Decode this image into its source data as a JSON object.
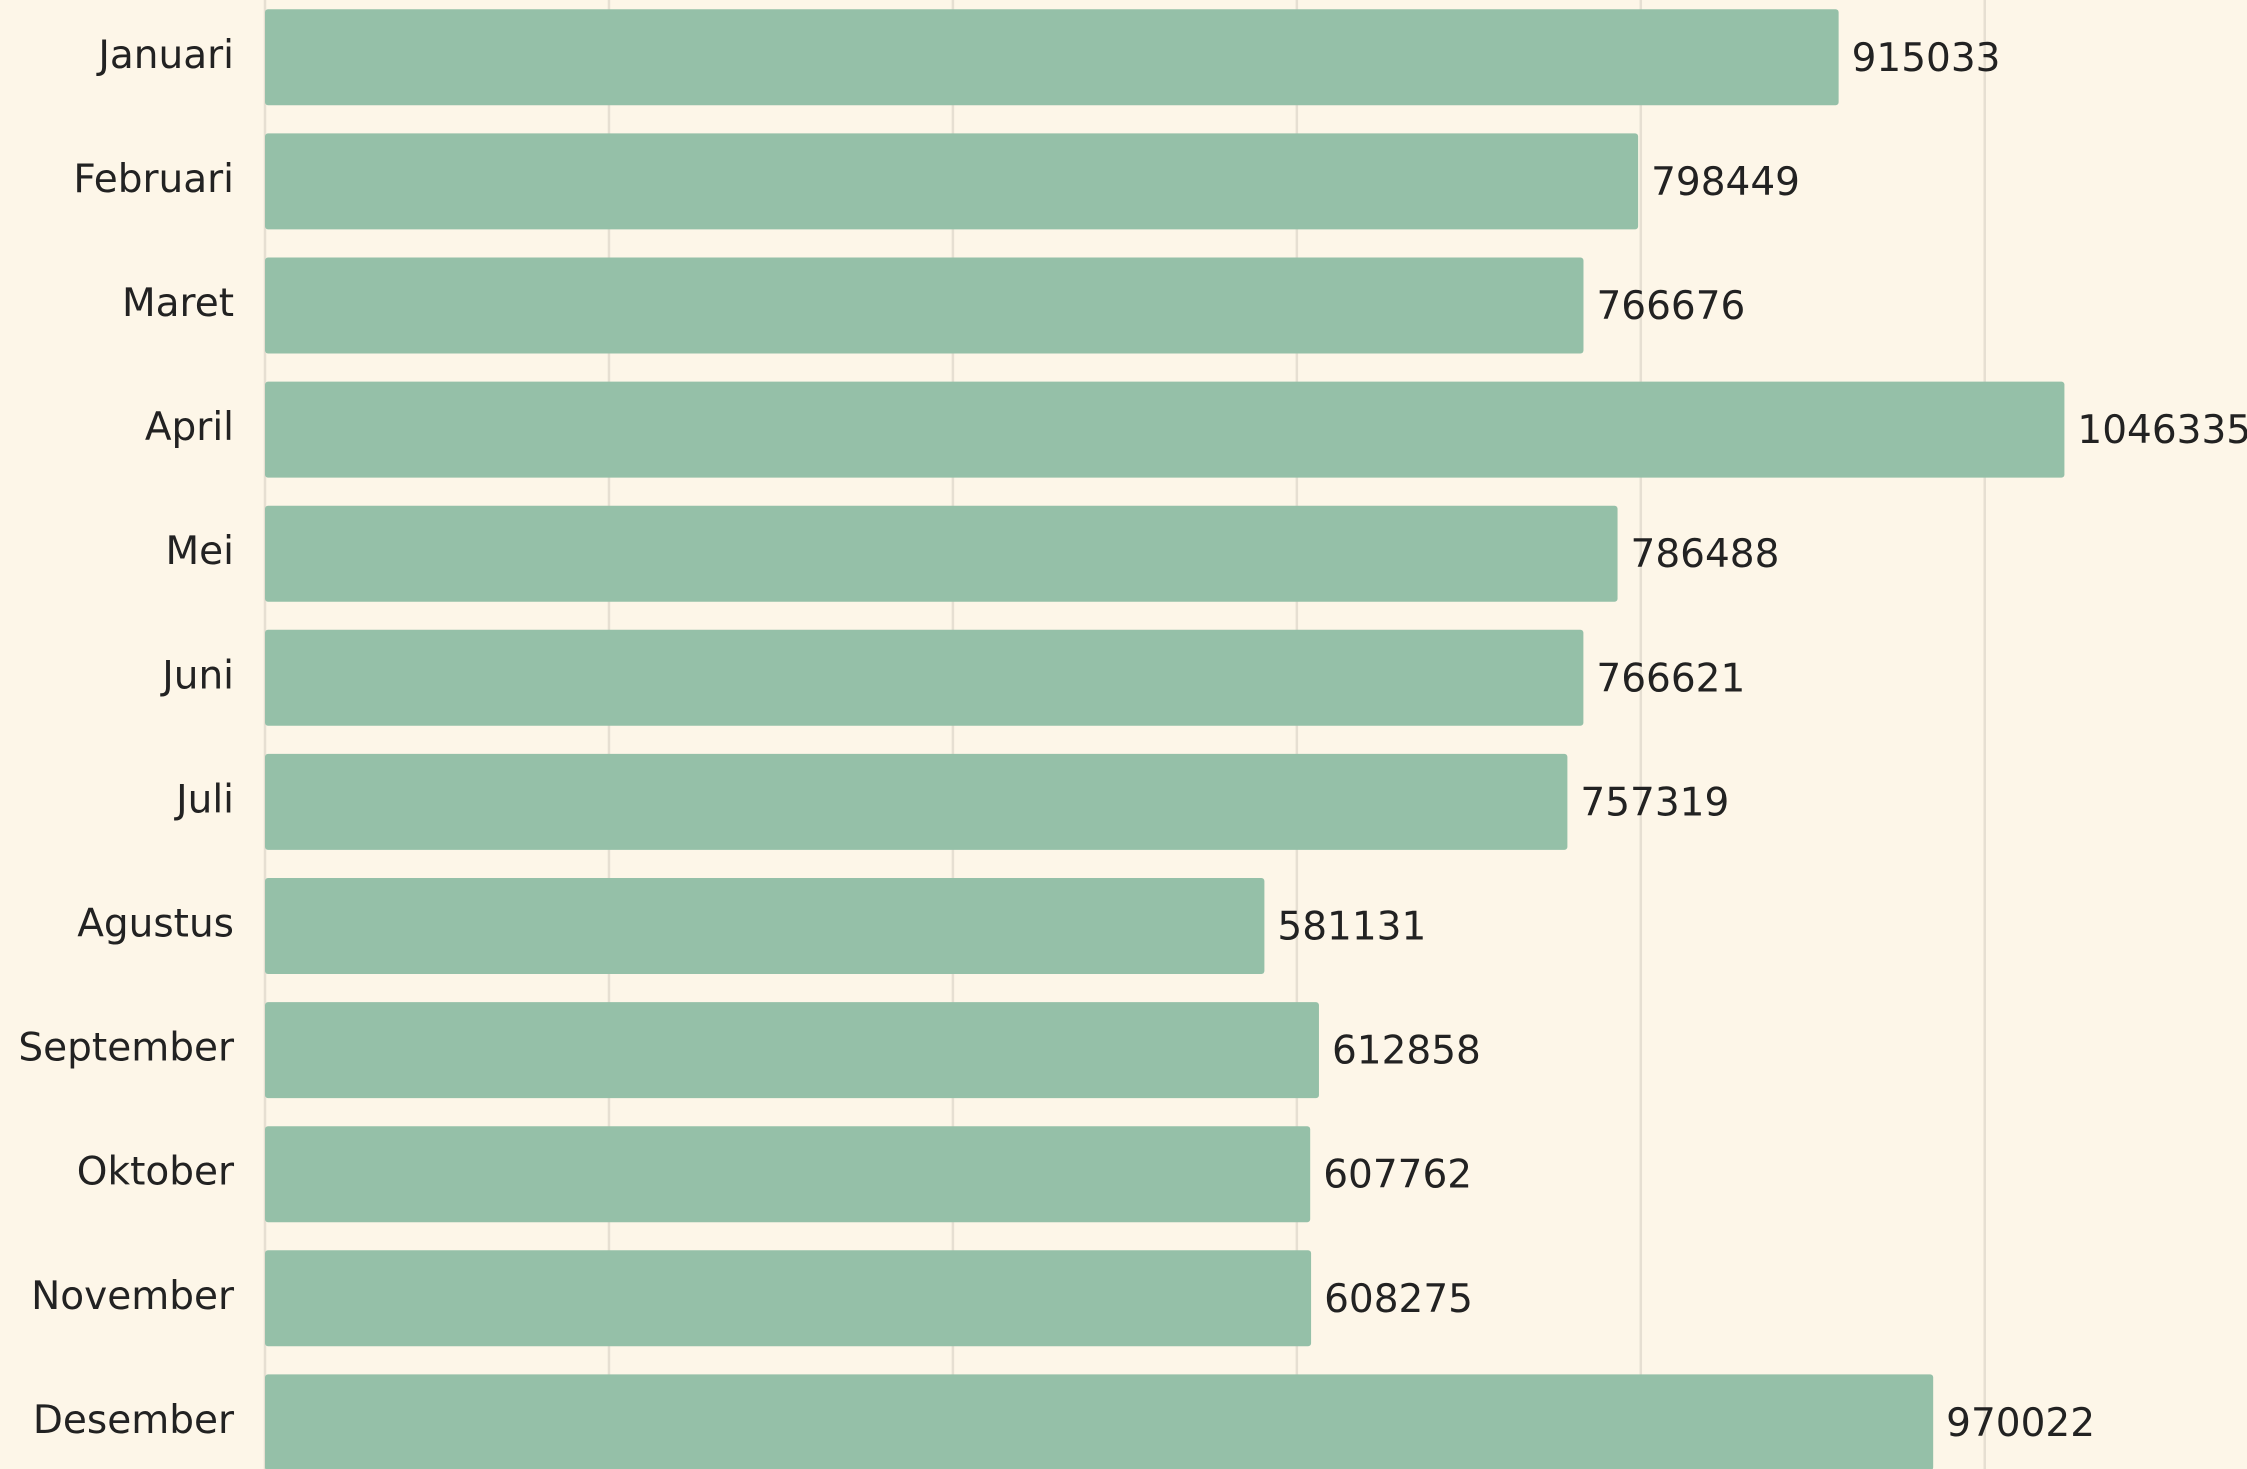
{
  "chart_data": {
    "type": "bar",
    "orientation": "horizontal",
    "categories": [
      "Januari",
      "Februari",
      "Maret",
      "April",
      "Mei",
      "Juni",
      "Juli",
      "Agustus",
      "September",
      "Oktober",
      "November",
      "Desember"
    ],
    "values": [
      915033,
      798449,
      766676,
      1046335,
      786488,
      766621,
      757319,
      581131,
      612858,
      607762,
      608275,
      970022
    ],
    "color": "#95c0a8",
    "xlim": [
      0,
      1150000
    ],
    "xticks": [
      0,
      200000,
      400000,
      600000,
      800000,
      1000000
    ],
    "grid": true
  }
}
